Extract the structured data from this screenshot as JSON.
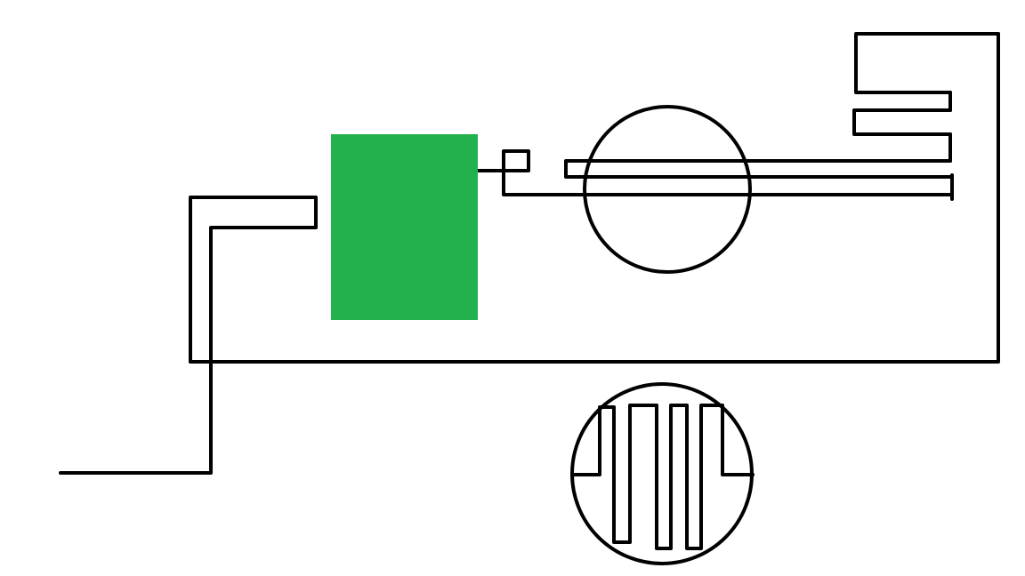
{
  "diagram": {
    "background_color": "#ffffff",
    "stroke_color": "#000000",
    "component_fill_color": "#22b14c",
    "components": [
      "enclosure-outline",
      "input-lead",
      "green-block",
      "circle-element",
      "comb-conductor",
      "meander-circle"
    ]
  }
}
